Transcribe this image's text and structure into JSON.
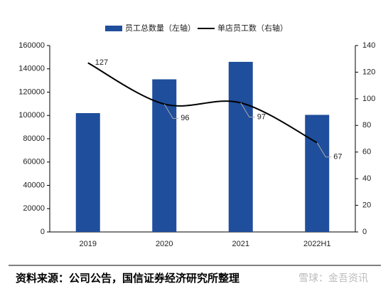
{
  "chart_data": {
    "type": "bar",
    "categories": [
      "2019",
      "2020",
      "2021",
      "2022H1"
    ],
    "series": [
      {
        "name": "员工总数量（左轴）",
        "type": "bar",
        "color": "#1f4e9c",
        "values": [
          102000,
          131000,
          146000,
          100500
        ]
      },
      {
        "name": "单店员工数（右轴）",
        "type": "line",
        "axis": "y2",
        "color": "#000000",
        "values": [
          127,
          96,
          97,
          67
        ]
      }
    ],
    "ylim": [
      0,
      160000
    ],
    "yticks": [
      0,
      20000,
      40000,
      60000,
      80000,
      100000,
      120000,
      140000,
      160000
    ],
    "y2lim": [
      0,
      140
    ],
    "y2ticks": [
      0,
      20,
      40,
      60,
      80,
      100,
      120,
      140
    ],
    "legend": "top",
    "source": "资料来源：公司公告，国信证券经济研究所整理",
    "watermark": "雪球：金吾资讯"
  }
}
